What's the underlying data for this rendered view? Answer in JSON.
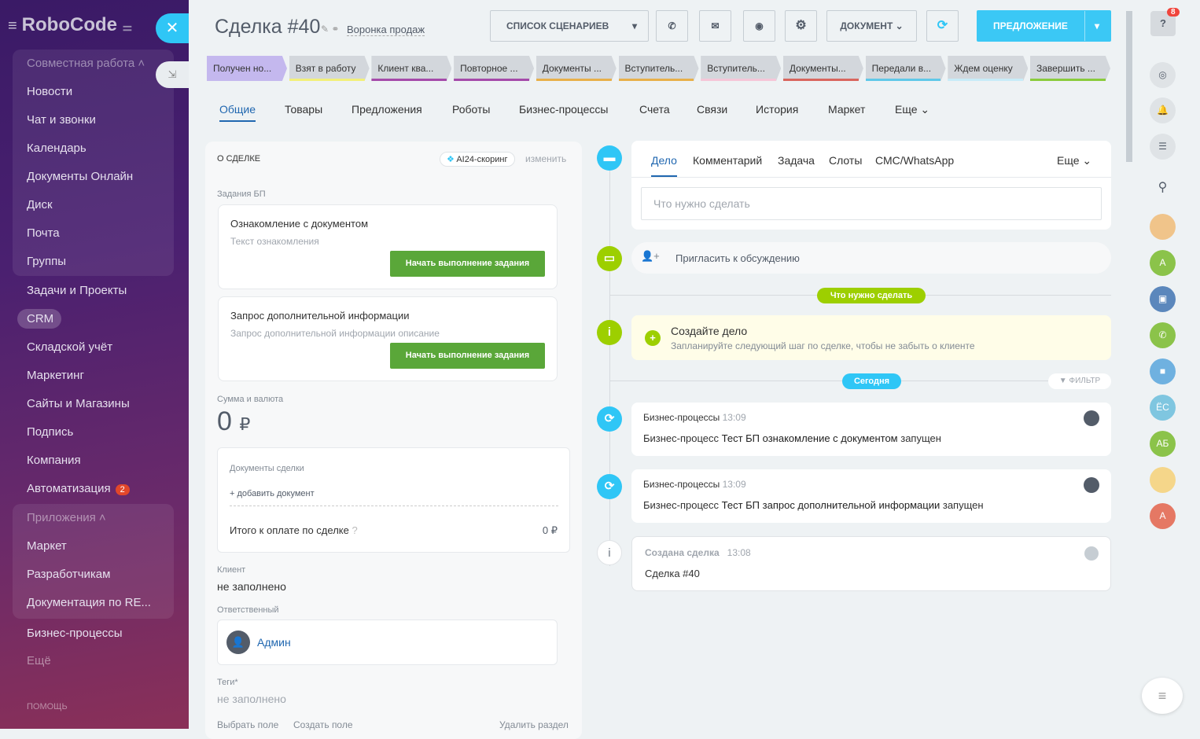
{
  "sidebar": {
    "logo": "RoboCode",
    "items": [
      "Совместная работа",
      "Новости",
      "Чат и звонки",
      "Календарь",
      "Документы Онлайн",
      "Диск",
      "Почта",
      "Группы",
      "Задачи и Проекты",
      "CRM",
      "Складской учёт",
      "Маркетинг",
      "Сайты и Магазины",
      "Подпись",
      "Компания",
      "Автоматизация",
      "Приложения",
      "Маркет",
      "Разработчикам",
      "Документация по RE...",
      "Бизнес-процессы",
      "Ещё"
    ],
    "automation_badge": "2",
    "help": "ПОМОЩЬ"
  },
  "header": {
    "title": "Сделка #40",
    "funnel": "Воронка продаж",
    "scenarios": "СПИСОК СЦЕНАРИЕВ",
    "document": "ДОКУМЕНТ",
    "offer": "ПРЕДЛОЖЕНИЕ"
  },
  "stages": [
    {
      "label": "Получен но...",
      "color": "#c4b8ee"
    },
    {
      "label": "Взят в работу",
      "color": "#f2f07a"
    },
    {
      "label": "Клиент ква...",
      "color": "#a54aaa"
    },
    {
      "label": "Повторное ...",
      "color": "#a54aaa"
    },
    {
      "label": "Документы ...",
      "color": "#e8b04a"
    },
    {
      "label": "Вступитель...",
      "color": "#e8b04a"
    },
    {
      "label": "Вступитель...",
      "color": "#f5c6d8"
    },
    {
      "label": "Документы...",
      "color": "#d9665e"
    },
    {
      "label": "Передали в...",
      "color": "#5fc8e8"
    },
    {
      "label": "Ждем оценку",
      "color": "#c8ecf8"
    },
    {
      "label": "Завершить ...",
      "color": "#8acb3d"
    }
  ],
  "tabs": [
    "Общие",
    "Товары",
    "Предложения",
    "Роботы",
    "Бизнес-процессы",
    "Счета",
    "Связи",
    "История",
    "Маркет",
    "Еще"
  ],
  "left": {
    "section": "О СДЕЛКЕ",
    "scoring": "AI24-скоринг",
    "edit": "изменить",
    "bp_tasks": "Задания БП",
    "tasks": [
      {
        "title": "Ознакомление с документом",
        "desc": "Текст ознакомления",
        "button": "Начать выполнение задания"
      },
      {
        "title": "Запрос дополнительной информации",
        "desc": "Запрос дополнительной информации описание",
        "button": "Начать выполнение задания"
      }
    ],
    "sum_label": "Сумма и валюта",
    "sum": "0",
    "currency": "₽",
    "docs": "Документы сделки",
    "add_doc": "+ добавить документ",
    "total_label": "Итого к оплате по сделке",
    "total": "0 ₽",
    "client_label": "Клиент",
    "client": "не заполнено",
    "resp_label": "Ответственный",
    "resp": "Админ",
    "tags_label": "Теги*",
    "tags": "не заполнено",
    "choose_field": "Выбрать поле",
    "create_field": "Создать поле",
    "delete_section": "Удалить раздел"
  },
  "timeline": {
    "tabs": [
      "Дело",
      "Комментарий",
      "Задача",
      "Слоты",
      "СМС/WhatsApp",
      "Еще"
    ],
    "placeholder": "Что нужно сделать",
    "invite": "Пригласить к обсуждению",
    "todo_pill": "Что нужно сделать",
    "create_title": "Создайте дело",
    "create_desc": "Запланируйте следующий шаг по сделке, чтобы не забыть о клиенте",
    "today": "Сегодня",
    "filter": "ФИЛЬТР",
    "events": [
      {
        "type": "Бизнес-процессы",
        "time": "13:09",
        "pre": "Бизнес-процесс ",
        "name": "Тест БП ознакомление с документом",
        "post": " запущен"
      },
      {
        "type": "Бизнес-процессы",
        "time": "13:09",
        "pre": "Бизнес-процесс ",
        "name": "Тест БП запрос дополнительной информации",
        "post": " запущен"
      }
    ],
    "created": {
      "type": "Создана сделка",
      "time": "13:08",
      "text": "Сделка #40"
    }
  },
  "right": {
    "notif_badge": "8",
    "avatars": [
      "А",
      "ЁС",
      "АБ",
      "А"
    ]
  }
}
